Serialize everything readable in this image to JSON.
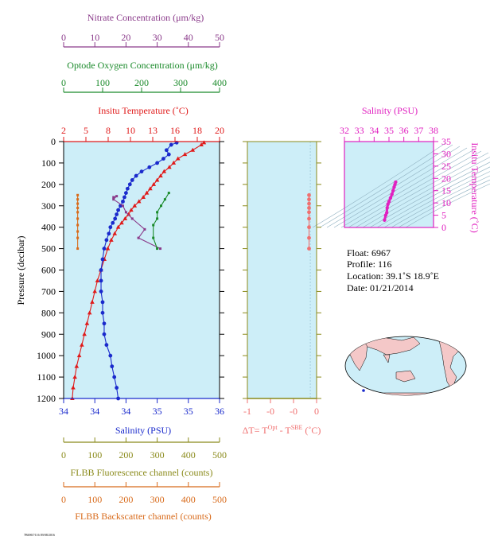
{
  "colors": {
    "nitrate": "#8a3a8a",
    "oxygen": "#1a8a2a",
    "temperature": "#e01a1a",
    "salinity": "#1a2acc",
    "fluorescence": "#8a8a1a",
    "backscatter": "#d86a1a",
    "delta_t": "#f07070",
    "ts": "#e020c0",
    "panel_bg": "#cdeef8"
  },
  "axes": {
    "nitrate": {
      "label": "Nitrate Concentration (μm/kg)",
      "ticks": [
        "0",
        "10",
        "20",
        "30",
        "40",
        "50"
      ]
    },
    "oxygen": {
      "label": "Optode Oxygen Concentration (μm/kg)",
      "ticks": [
        "0",
        "100",
        "200",
        "300",
        "400"
      ]
    },
    "temperature": {
      "label": "Insitu Temperature (˚C)",
      "ticks": [
        "2",
        "5",
        "8",
        "10",
        "13",
        "16",
        "18",
        "20"
      ]
    },
    "salinity": {
      "label": "Salinity (PSU)",
      "ticks": [
        "34",
        "34",
        "34",
        "35",
        "35",
        "36"
      ]
    },
    "pressure": {
      "label": "Pressure (decibar)",
      "ticks": [
        "0",
        "100",
        "200",
        "300",
        "400",
        "500",
        "600",
        "700",
        "800",
        "900",
        "1000",
        "1100",
        "1200"
      ]
    },
    "fluorescence": {
      "label": "FLBB Fluorescence channel (counts)",
      "ticks": [
        "0",
        "100",
        "200",
        "300",
        "400",
        "500"
      ]
    },
    "backscatter": {
      "label": "FLBB Backscatter channel (counts)",
      "ticks": [
        "0",
        "100",
        "200",
        "300",
        "400",
        "500"
      ]
    },
    "delta_t": {
      "label_main": "ΔT= T",
      "label_sup1": "Opt",
      "label_mid": " - T",
      "label_sup2": "SBE",
      "label_unit": " (˚C)",
      "ticks": [
        "-1",
        "-0",
        "-0",
        "0"
      ]
    },
    "ts_salinity": {
      "label": "Salinity (PSU)",
      "ticks": [
        "32",
        "33",
        "34",
        "35",
        "36",
        "37",
        "38"
      ]
    },
    "ts_temperature": {
      "label": "Insitu Temperature (˚C)",
      "ticks": [
        "0",
        "5",
        "10",
        "15",
        "20",
        "25",
        "30",
        "35"
      ]
    }
  },
  "info": {
    "float": "Float:  6967",
    "profile": "Profile:  116",
    "location": "Location:  39.1˚S  18.9˚E",
    "date": "Date:  01/21/2014"
  },
  "footer_code": "7B6967/116 09/08/2016",
  "chart_data": {
    "type": "scatter",
    "y_axis": "pressure",
    "ylim": [
      1200,
      0
    ],
    "series": [
      {
        "name": "Insitu Temperature",
        "xlim": [
          2,
          20
        ],
        "x": [
          18.2,
          17.9,
          16.9,
          16.0,
          15.2,
          14.7,
          14.2,
          13.6,
          13.2,
          12.8,
          12.4,
          12.0,
          11.6,
          11.2,
          10.7,
          10.2,
          9.8,
          9.5,
          9.1,
          8.7,
          8.3,
          7.9,
          7.5,
          7.1,
          6.7,
          6.3,
          5.9,
          5.6,
          5.3,
          5.0,
          4.7,
          4.4,
          4.1,
          3.8,
          3.5,
          3.3,
          3.1,
          3.0
        ],
        "y": [
          5,
          15,
          40,
          60,
          80,
          100,
          120,
          140,
          160,
          180,
          200,
          220,
          240,
          260,
          280,
          300,
          320,
          340,
          360,
          380,
          400,
          430,
          460,
          500,
          550,
          600,
          650,
          700,
          750,
          800,
          850,
          900,
          950,
          1000,
          1050,
          1100,
          1150,
          1200
        ]
      },
      {
        "name": "Salinity",
        "xlim": [
          34.0,
          36.0
        ],
        "x": [
          35.45,
          35.38,
          35.32,
          35.35,
          35.28,
          35.2,
          35.1,
          35.0,
          34.93,
          34.88,
          34.85,
          34.82,
          34.8,
          34.78,
          34.76,
          34.73,
          34.7,
          34.68,
          34.66,
          34.63,
          34.6,
          34.58,
          34.55,
          34.52,
          34.5,
          34.48,
          34.48,
          34.48,
          34.5,
          34.5,
          34.52,
          34.52,
          34.55,
          34.6,
          34.62,
          34.65,
          34.68,
          34.7
        ],
        "y": [
          5,
          15,
          40,
          60,
          80,
          100,
          120,
          140,
          160,
          180,
          200,
          220,
          240,
          260,
          280,
          300,
          320,
          340,
          360,
          380,
          400,
          430,
          460,
          500,
          550,
          600,
          650,
          700,
          750,
          800,
          850,
          900,
          950,
          1000,
          1050,
          1100,
          1150,
          1200
        ]
      },
      {
        "name": "Nitrate",
        "xlim": [
          0,
          50
        ],
        "x": [
          16,
          17,
          16,
          19,
          20,
          22,
          26,
          24,
          31
        ],
        "y": [
          260,
          255,
          270,
          300,
          330,
          360,
          410,
          450,
          500
        ]
      },
      {
        "name": "Optode Oxygen",
        "xlim": [
          0,
          400
        ],
        "x": [
          270,
          260,
          250,
          240,
          240,
          230,
          230,
          240
        ],
        "y": [
          240,
          270,
          300,
          330,
          360,
          390,
          450,
          500
        ]
      },
      {
        "name": "FLBB Backscatter",
        "xlim": [
          0,
          500
        ],
        "x": [
          45,
          45,
          45,
          45,
          45,
          45,
          45,
          45,
          45,
          45
        ],
        "y": [
          250,
          270,
          290,
          310,
          330,
          360,
          390,
          420,
          450,
          500
        ]
      },
      {
        "name": "Delta T",
        "xlim": [
          -1,
          0.1
        ],
        "x": [
          -0.02,
          -0.02,
          -0.02,
          -0.02,
          -0.02,
          -0.02,
          -0.02,
          -0.02,
          -0.02
        ],
        "y": [
          250,
          270,
          290,
          310,
          330,
          360,
          400,
          450,
          500
        ]
      }
    ],
    "ts": {
      "xlim": [
        32,
        38
      ],
      "ylim": [
        0,
        35
      ],
      "salinity": [
        34.7,
        34.78,
        34.85,
        34.88,
        34.93,
        35.0,
        35.1,
        35.2,
        35.28,
        35.35,
        35.4,
        35.45
      ],
      "temperature": [
        3.0,
        5.0,
        6.0,
        8.0,
        9.5,
        10.5,
        12.0,
        13.5,
        15.0,
        16.5,
        17.5,
        18.5
      ]
    }
  }
}
